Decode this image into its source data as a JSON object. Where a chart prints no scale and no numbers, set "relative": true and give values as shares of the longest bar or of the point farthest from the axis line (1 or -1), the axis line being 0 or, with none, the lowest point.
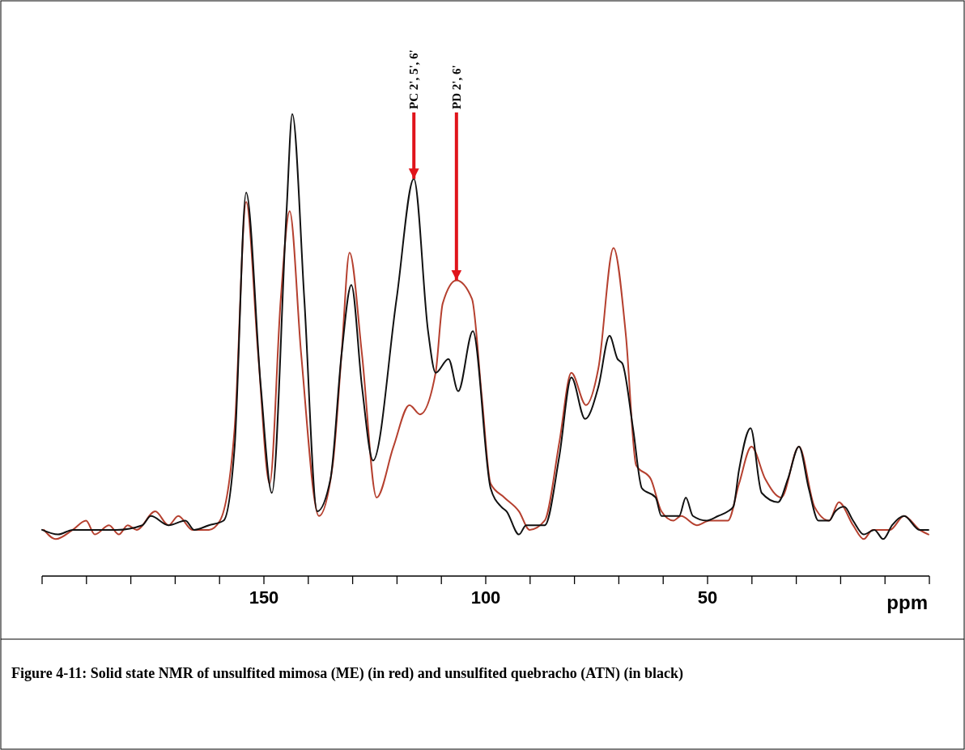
{
  "chart_data": {
    "type": "line",
    "relative": true,
    "xlabel": "ppm",
    "xlim": [
      200,
      0
    ],
    "xticks": [
      {
        "value": 200,
        "label": null
      },
      {
        "value": 190,
        "label": null
      },
      {
        "value": 180,
        "label": null
      },
      {
        "value": 170,
        "label": null
      },
      {
        "value": 160,
        "label": null
      },
      150,
      {
        "value": 140,
        "label": null
      },
      {
        "value": 130,
        "label": null
      },
      {
        "value": 120,
        "label": null
      },
      {
        "value": 110,
        "label": null
      },
      100,
      {
        "value": 90,
        "label": null
      },
      {
        "value": 80,
        "label": null
      },
      {
        "value": 70,
        "label": null
      },
      {
        "value": 60,
        "label": null
      },
      50,
      {
        "value": 40,
        "label": null
      },
      {
        "value": 30,
        "label": null
      },
      {
        "value": 20,
        "label": null
      },
      {
        "value": 10,
        "label": null
      },
      {
        "value": 0,
        "label": null
      }
    ],
    "series": [
      {
        "color": "#b5402f",
        "x": [
          199.6,
          196.9,
          193.1,
          190.1,
          188.1,
          184.9,
          182.7,
          180.7,
          178.7,
          174.5,
          171.5,
          169.3,
          166.1,
          162.4,
          159.9,
          156.6,
          154.0,
          151.3,
          148.7,
          146.2,
          144.2,
          141.6,
          137.6,
          134.5,
          132.5,
          130.7,
          127.9,
          124.6,
          120.8,
          117.2,
          114.8,
          111.3,
          109.7,
          106.6,
          103.1,
          100.9,
          98.9,
          95.8,
          92.5,
          90.1,
          86.7,
          83.4,
          80.7,
          77.4,
          74.6,
          71.2,
          68.4,
          66.1,
          62.8,
          60.4,
          57.7,
          56.0,
          52.4,
          49.6,
          45.4,
          42.9,
          40.1,
          37.0,
          33.4,
          29.4,
          25.9,
          22.6,
          20.4,
          17.2,
          14.8,
          12.8,
          8.9,
          5.7,
          2.2,
          0.2
        ],
        "values": [
          0.1,
          0.08,
          0.1,
          0.12,
          0.09,
          0.11,
          0.09,
          0.11,
          0.1,
          0.14,
          0.11,
          0.13,
          0.1,
          0.1,
          0.12,
          0.32,
          0.81,
          0.48,
          0.2,
          0.6,
          0.79,
          0.48,
          0.13,
          0.24,
          0.48,
          0.7,
          0.48,
          0.17,
          0.28,
          0.37,
          0.35,
          0.44,
          0.59,
          0.64,
          0.6,
          0.39,
          0.2,
          0.17,
          0.14,
          0.1,
          0.12,
          0.29,
          0.44,
          0.37,
          0.45,
          0.71,
          0.52,
          0.24,
          0.21,
          0.14,
          0.12,
          0.13,
          0.11,
          0.12,
          0.12,
          0.2,
          0.28,
          0.21,
          0.17,
          0.28,
          0.15,
          0.12,
          0.16,
          0.11,
          0.08,
          0.1,
          0.1,
          0.13,
          0.1,
          0.09
        ]
      },
      {
        "color": "#111111",
        "x": [
          200.0,
          196.4,
          193.1,
          187.2,
          183.2,
          177.4,
          175.5,
          171.5,
          167.7,
          165.7,
          162.4,
          159.1,
          156.6,
          154.0,
          150.7,
          148.2,
          144.9,
          143.6,
          140.9,
          138.0,
          135.0,
          132.5,
          130.3,
          127.9,
          125.4,
          120.1,
          116.2,
          113.0,
          111.3,
          108.4,
          106.2,
          102.9,
          98.9,
          96.5,
          95.3,
          92.5,
          90.9,
          86.7,
          83.4,
          80.7,
          77.6,
          74.6,
          72.1,
          70.3,
          69.2,
          66.8,
          64.8,
          61.7,
          60.4,
          56.4,
          54.9,
          53.3,
          50.2,
          47.6,
          45.4,
          44.2,
          42.9,
          40.3,
          37.8,
          34.1,
          31.9,
          29.4,
          27.2,
          25.0,
          22.6,
          21.2,
          19.2,
          17.2,
          14.8,
          12.4,
          10.4,
          8.4,
          5.7,
          2.2,
          0.2
        ],
        "values": [
          0.1,
          0.09,
          0.1,
          0.1,
          0.1,
          0.11,
          0.13,
          0.11,
          0.12,
          0.1,
          0.11,
          0.12,
          0.28,
          0.83,
          0.41,
          0.18,
          0.79,
          1.0,
          0.6,
          0.14,
          0.21,
          0.48,
          0.63,
          0.41,
          0.25,
          0.6,
          0.86,
          0.53,
          0.44,
          0.47,
          0.4,
          0.53,
          0.19,
          0.15,
          0.14,
          0.09,
          0.11,
          0.11,
          0.26,
          0.43,
          0.34,
          0.41,
          0.52,
          0.47,
          0.46,
          0.32,
          0.19,
          0.17,
          0.13,
          0.13,
          0.17,
          0.13,
          0.12,
          0.13,
          0.14,
          0.15,
          0.23,
          0.32,
          0.18,
          0.16,
          0.21,
          0.28,
          0.19,
          0.12,
          0.12,
          0.14,
          0.15,
          0.12,
          0.09,
          0.1,
          0.08,
          0.11,
          0.13,
          0.1,
          0.1
        ]
      }
    ],
    "annotations": [
      {
        "text": "PC 2', 5', 6'",
        "x": 116.2,
        "y": 0.86
      },
      {
        "text": "PD 2', 6'",
        "x": 106.6,
        "y": 0.64
      },
      "Figure 4-11: Solid state NMR of unsulfited mimosa (ME) (in red) and unsulfited quebracho (ATN) (in black)"
    ]
  }
}
